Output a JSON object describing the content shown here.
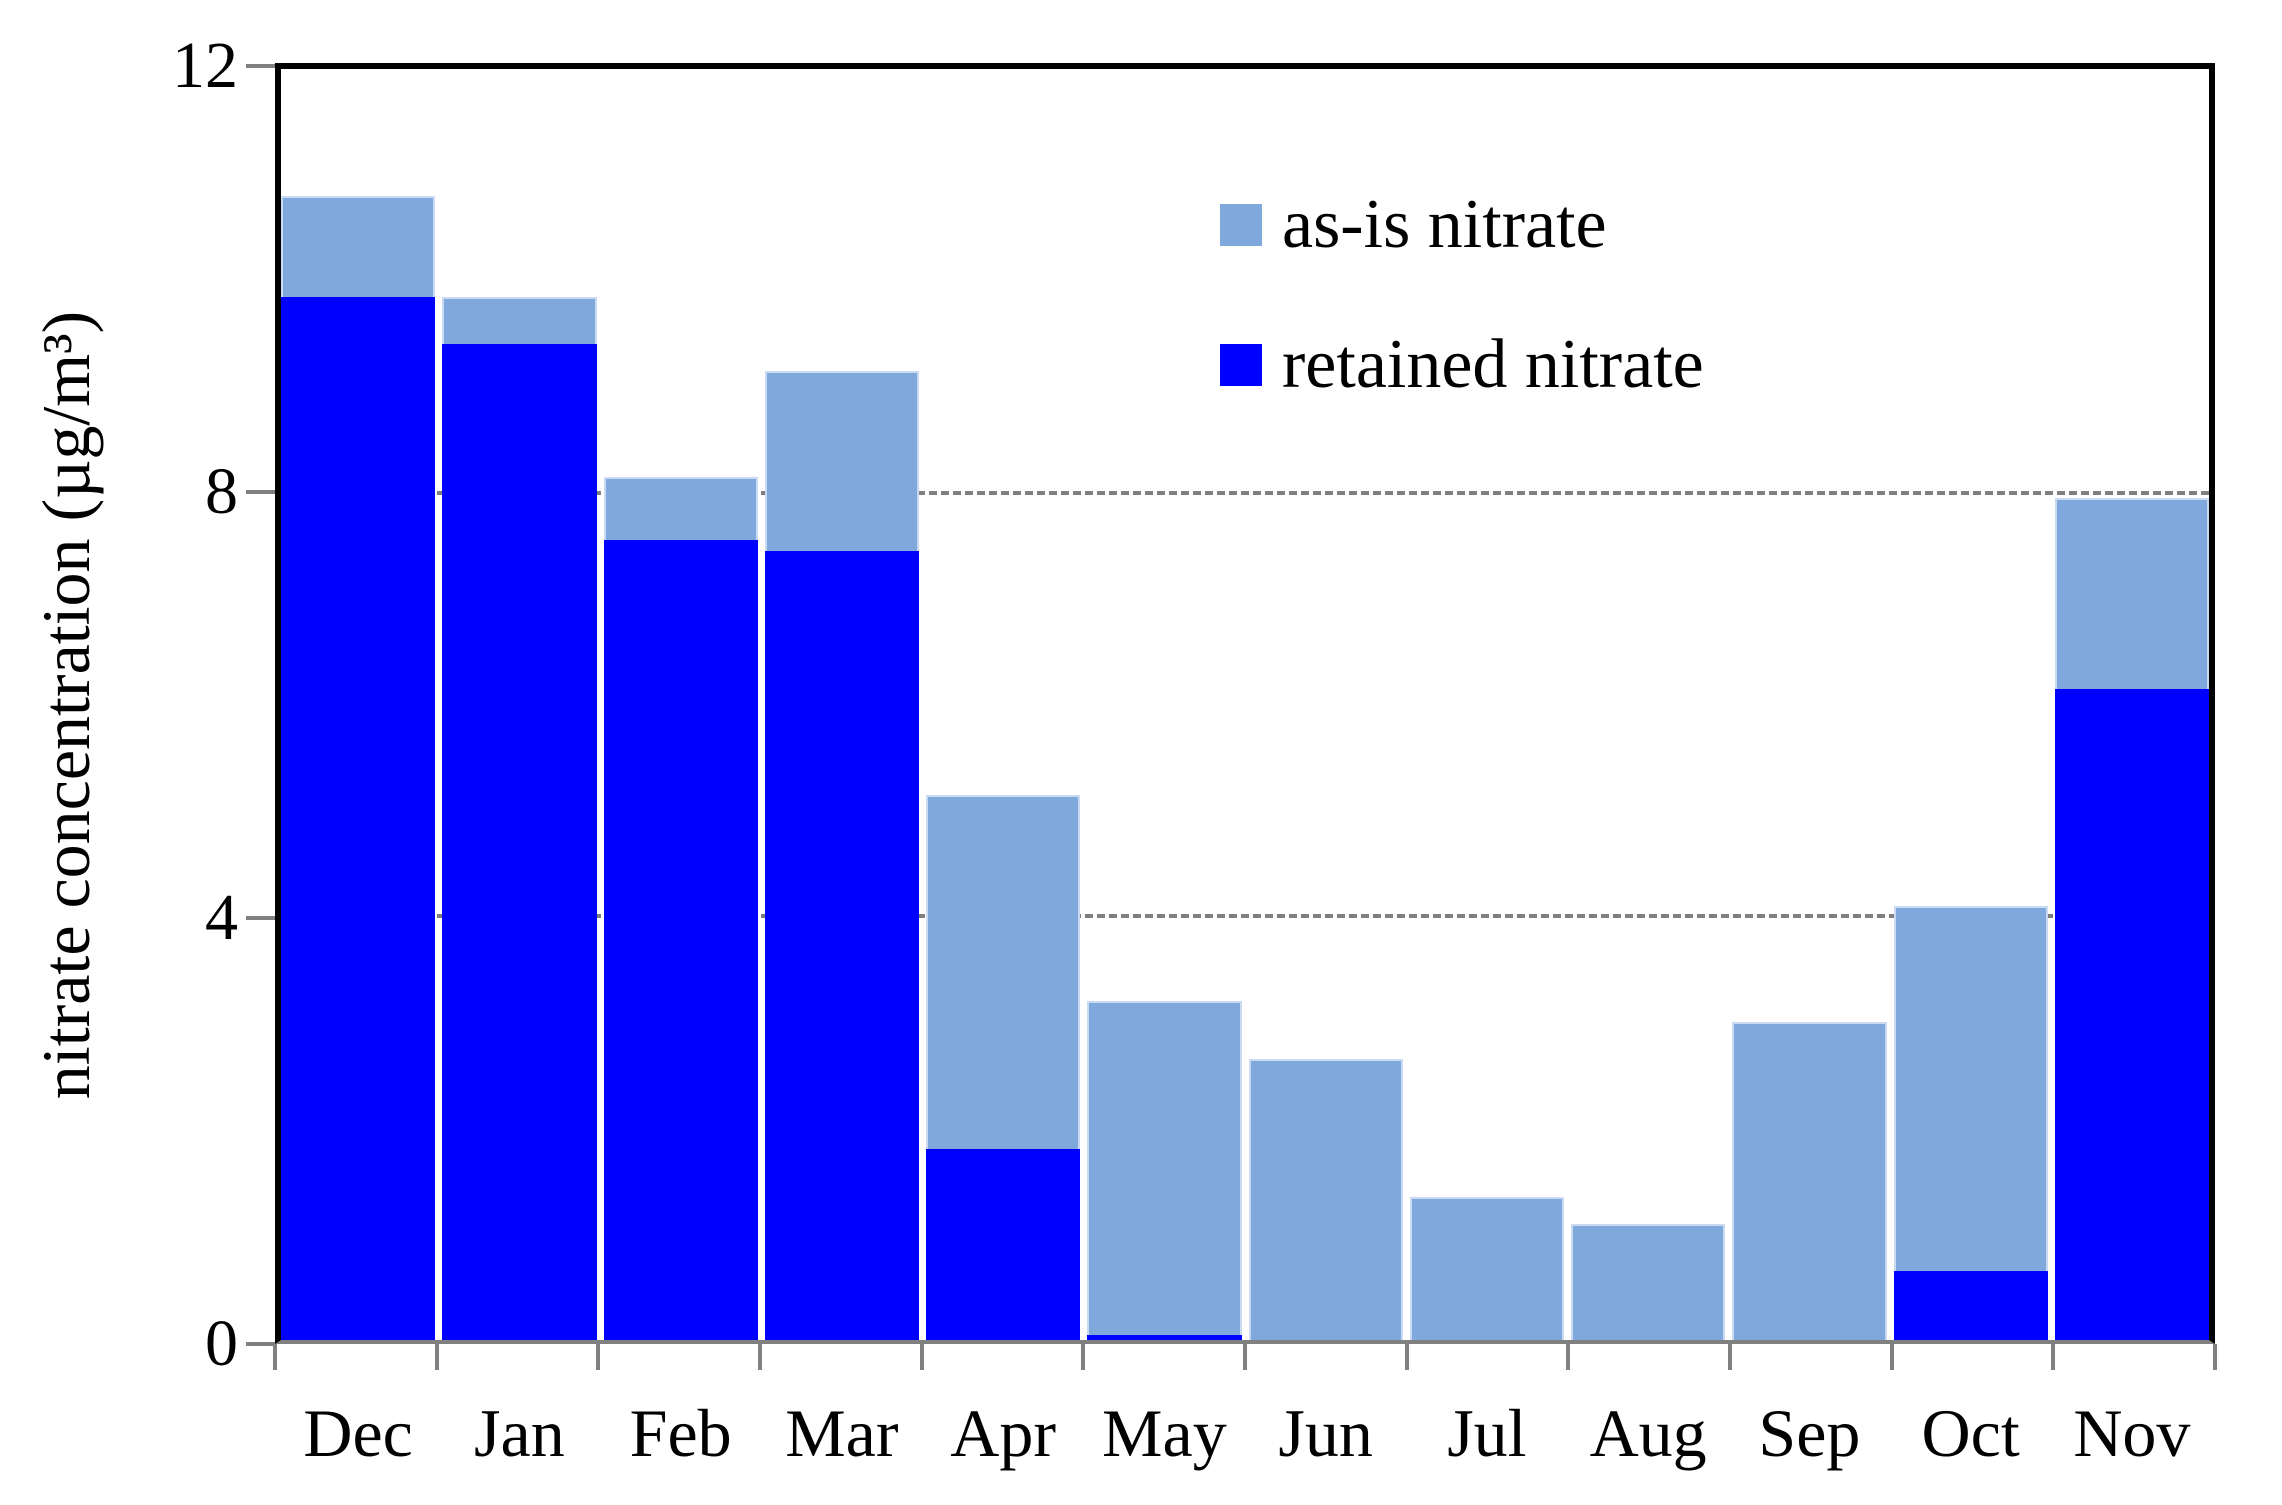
{
  "figure": {
    "background": "#FFFFFF",
    "text_color": "#000000"
  },
  "chart_data": {
    "type": "bar",
    "title": "",
    "xlabel": "",
    "ylabel": "nitrate concentration (µg/m³)",
    "categories": [
      "Dec",
      "Jan",
      "Feb",
      "Mar",
      "Apr",
      "May",
      "Jun",
      "Jul",
      "Aug",
      "Sep",
      "Oct",
      "Nov"
    ],
    "series": [
      {
        "name": "as-is nitrate",
        "color": "#7FA8DC",
        "values": [
          10.8,
          9.85,
          8.15,
          9.15,
          5.15,
          3.2,
          2.65,
          1.35,
          1.1,
          3.0,
          4.1,
          7.95
        ]
      },
      {
        "name": "retained nitrate",
        "color": "#0000FE",
        "values": [
          9.85,
          9.4,
          7.55,
          7.45,
          1.8,
          0.05,
          0,
          0,
          0,
          0,
          0.65,
          6.15
        ]
      }
    ],
    "bar_style": "overlay",
    "ylim": [
      0,
      12
    ],
    "yticks": [
      12,
      8,
      4,
      0
    ],
    "gridlines": [
      4,
      8
    ],
    "grid_style": "dashed",
    "grid_color": "#7F7F7F",
    "axis_line_color": "#808080",
    "frame_color": "#000000",
    "bar_border_color": "#C9DAF2",
    "legend_position": "inside-top-right",
    "legend_on": true
  }
}
